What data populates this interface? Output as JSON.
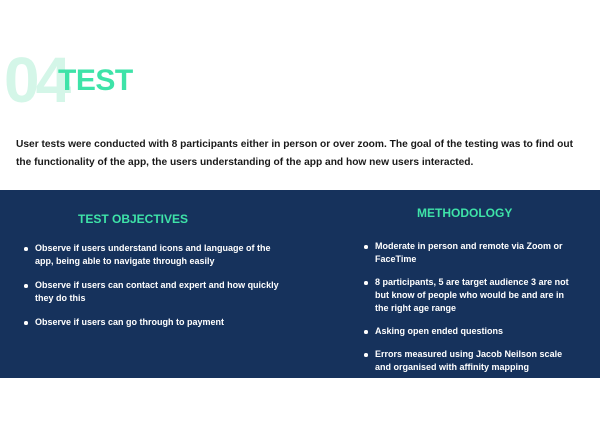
{
  "header": {
    "number": "04",
    "title": "TEST"
  },
  "intro": "User tests were conducted with 8 participants either in person or over zoom. The goal of the testing was to find out the functionality of the app, the users understanding of the app and how new users interacted.",
  "objectives": {
    "heading": "TEST OBJECTIVES",
    "items": [
      "Observe if users understand icons and language of the app, being able to navigate through easily",
      "Observe if users can contact and expert and how quickly they do this",
      "Observe if users can go through to payment"
    ]
  },
  "methodology": {
    "heading": "METHODOLOGY",
    "items": [
      "Moderate in person and remote via Zoom or FaceTime",
      "8 participants, 5 are target audience 3 are not but know of people who would be and are in the right age range",
      "Asking open ended questions",
      "Errors measured using Jacob Neilson scale and organised with affinity mapping"
    ]
  },
  "colors": {
    "accent": "#3ee3a8",
    "number_tint": "#d4f6e8",
    "panel_bg": "#16325c",
    "text_dark": "#1a1a1a"
  }
}
